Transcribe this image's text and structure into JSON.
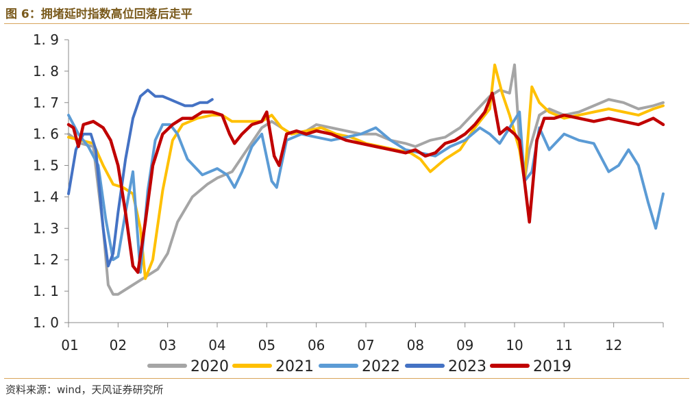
{
  "header": {
    "title": "图 6：拥堵延时指数高位回落后走平"
  },
  "footer": {
    "source": "资料来源：wind，天风证券研究所"
  },
  "colors": {
    "2020": "#a5a5a5",
    "2021": "#ffc000",
    "2022": "#5b9bd5",
    "2023": "#4472c4",
    "2019": "#c00000",
    "rule": "#d8a45a"
  },
  "chart_data": {
    "type": "line",
    "title": "",
    "xlabel": "",
    "ylabel": "",
    "ylim": [
      1.0,
      1.9
    ],
    "yticks": [
      "1.0",
      "1.1",
      "1.2",
      "1.3",
      "1.4",
      "1.5",
      "1.6",
      "1.7",
      "1.8",
      "1.9"
    ],
    "xlim": [
      1,
      13
    ],
    "xticks": [
      "01",
      "02",
      "03",
      "04",
      "05",
      "06",
      "07",
      "08",
      "09",
      "10",
      "11",
      "12"
    ],
    "grid": false,
    "legend": "bottom",
    "series": [
      {
        "name": "2020",
        "x": [
          1.0,
          1.25,
          1.5,
          1.7,
          1.8,
          1.9,
          2.0,
          2.2,
          2.4,
          2.6,
          2.8,
          3.0,
          3.2,
          3.5,
          3.8,
          4.0,
          4.3,
          4.6,
          4.9,
          5.1,
          5.3,
          5.5,
          5.8,
          6.0,
          6.3,
          6.6,
          6.9,
          7.2,
          7.5,
          7.8,
          8.0,
          8.3,
          8.6,
          8.9,
          9.2,
          9.5,
          9.7,
          9.9,
          10.0,
          10.1,
          10.2,
          10.3,
          10.5,
          10.7,
          11.0,
          11.3,
          11.6,
          11.9,
          12.2,
          12.5,
          12.8,
          13.0
        ],
        "y": [
          1.6,
          1.57,
          1.56,
          1.3,
          1.12,
          1.09,
          1.09,
          1.11,
          1.13,
          1.15,
          1.17,
          1.22,
          1.32,
          1.4,
          1.44,
          1.46,
          1.48,
          1.55,
          1.62,
          1.64,
          1.62,
          1.6,
          1.61,
          1.63,
          1.62,
          1.61,
          1.6,
          1.6,
          1.58,
          1.57,
          1.56,
          1.58,
          1.59,
          1.62,
          1.67,
          1.72,
          1.74,
          1.73,
          1.82,
          1.58,
          1.45,
          1.55,
          1.66,
          1.68,
          1.66,
          1.67,
          1.69,
          1.71,
          1.7,
          1.68,
          1.69,
          1.7
        ]
      },
      {
        "name": "2021",
        "x": [
          1.0,
          1.25,
          1.5,
          1.7,
          1.9,
          2.1,
          2.3,
          2.45,
          2.55,
          2.7,
          2.9,
          3.1,
          3.3,
          3.6,
          3.9,
          4.1,
          4.3,
          4.6,
          4.9,
          5.1,
          5.3,
          5.5,
          5.8,
          6.1,
          6.4,
          6.7,
          7.0,
          7.3,
          7.6,
          7.9,
          8.1,
          8.3,
          8.6,
          8.9,
          9.2,
          9.5,
          9.6,
          9.75,
          9.9,
          10.1,
          10.2,
          10.35,
          10.5,
          10.7,
          11.0,
          11.3,
          11.6,
          11.9,
          12.2,
          12.5,
          12.8,
          13.0
        ],
        "y": [
          1.59,
          1.58,
          1.57,
          1.5,
          1.44,
          1.43,
          1.41,
          1.3,
          1.14,
          1.2,
          1.42,
          1.58,
          1.63,
          1.65,
          1.66,
          1.66,
          1.64,
          1.64,
          1.64,
          1.66,
          1.62,
          1.6,
          1.61,
          1.62,
          1.6,
          1.59,
          1.57,
          1.56,
          1.55,
          1.54,
          1.52,
          1.48,
          1.52,
          1.55,
          1.62,
          1.68,
          1.82,
          1.73,
          1.66,
          1.55,
          1.45,
          1.75,
          1.7,
          1.67,
          1.65,
          1.66,
          1.67,
          1.68,
          1.67,
          1.66,
          1.68,
          1.69
        ]
      },
      {
        "name": "2022",
        "x": [
          1.0,
          1.2,
          1.4,
          1.6,
          1.75,
          1.9,
          2.0,
          2.15,
          2.3,
          2.45,
          2.6,
          2.75,
          2.9,
          3.05,
          3.2,
          3.4,
          3.7,
          4.0,
          4.2,
          4.35,
          4.5,
          4.7,
          4.9,
          5.1,
          5.2,
          5.4,
          5.7,
          6.0,
          6.3,
          6.6,
          6.9,
          7.2,
          7.5,
          7.8,
          8.1,
          8.4,
          8.7,
          9.0,
          9.3,
          9.5,
          9.7,
          9.9,
          10.1,
          10.2,
          10.35,
          10.5,
          10.7,
          11.0,
          11.3,
          11.6,
          11.9,
          12.1,
          12.3,
          12.5,
          12.7,
          12.85,
          13.0
        ],
        "y": [
          1.66,
          1.6,
          1.56,
          1.5,
          1.33,
          1.2,
          1.21,
          1.35,
          1.48,
          1.16,
          1.42,
          1.58,
          1.63,
          1.63,
          1.6,
          1.52,
          1.47,
          1.49,
          1.47,
          1.43,
          1.48,
          1.56,
          1.6,
          1.45,
          1.43,
          1.58,
          1.6,
          1.59,
          1.58,
          1.59,
          1.6,
          1.62,
          1.58,
          1.55,
          1.54,
          1.53,
          1.56,
          1.58,
          1.62,
          1.6,
          1.57,
          1.62,
          1.67,
          1.45,
          1.48,
          1.62,
          1.55,
          1.6,
          1.58,
          1.57,
          1.48,
          1.5,
          1.55,
          1.5,
          1.38,
          1.3,
          1.41
        ]
      },
      {
        "name": "2023",
        "x": [
          1.0,
          1.15,
          1.3,
          1.45,
          1.55,
          1.7,
          1.8,
          1.9,
          2.0,
          2.15,
          2.3,
          2.45,
          2.6,
          2.75,
          2.9,
          3.05,
          3.2,
          3.35,
          3.5,
          3.65,
          3.8,
          3.9
        ],
        "y": [
          1.41,
          1.55,
          1.6,
          1.6,
          1.55,
          1.3,
          1.18,
          1.22,
          1.35,
          1.52,
          1.65,
          1.72,
          1.74,
          1.72,
          1.72,
          1.71,
          1.7,
          1.69,
          1.69,
          1.7,
          1.7,
          1.71
        ]
      },
      {
        "name": "2019",
        "x": [
          1.0,
          1.1,
          1.2,
          1.3,
          1.5,
          1.7,
          1.85,
          2.0,
          2.15,
          2.3,
          2.4,
          2.55,
          2.7,
          2.9,
          3.1,
          3.3,
          3.5,
          3.7,
          3.9,
          4.1,
          4.25,
          4.35,
          4.5,
          4.7,
          4.9,
          5.0,
          5.15,
          5.25,
          5.4,
          5.6,
          5.8,
          6.0,
          6.3,
          6.6,
          6.9,
          7.2,
          7.5,
          7.8,
          8.0,
          8.2,
          8.4,
          8.6,
          8.8,
          9.0,
          9.2,
          9.4,
          9.55,
          9.7,
          9.85,
          10.0,
          10.1,
          10.2,
          10.3,
          10.45,
          10.6,
          10.8,
          11.0,
          11.3,
          11.6,
          11.9,
          12.2,
          12.5,
          12.8,
          13.0
        ],
        "y": [
          1.63,
          1.62,
          1.56,
          1.63,
          1.64,
          1.62,
          1.58,
          1.5,
          1.35,
          1.18,
          1.16,
          1.32,
          1.5,
          1.6,
          1.63,
          1.65,
          1.65,
          1.67,
          1.67,
          1.66,
          1.6,
          1.57,
          1.6,
          1.63,
          1.64,
          1.67,
          1.53,
          1.5,
          1.6,
          1.61,
          1.6,
          1.61,
          1.6,
          1.58,
          1.57,
          1.56,
          1.55,
          1.54,
          1.55,
          1.53,
          1.54,
          1.57,
          1.58,
          1.6,
          1.63,
          1.67,
          1.73,
          1.6,
          1.62,
          1.6,
          1.58,
          1.45,
          1.32,
          1.58,
          1.65,
          1.65,
          1.66,
          1.65,
          1.64,
          1.65,
          1.64,
          1.63,
          1.65,
          1.63
        ]
      }
    ]
  }
}
